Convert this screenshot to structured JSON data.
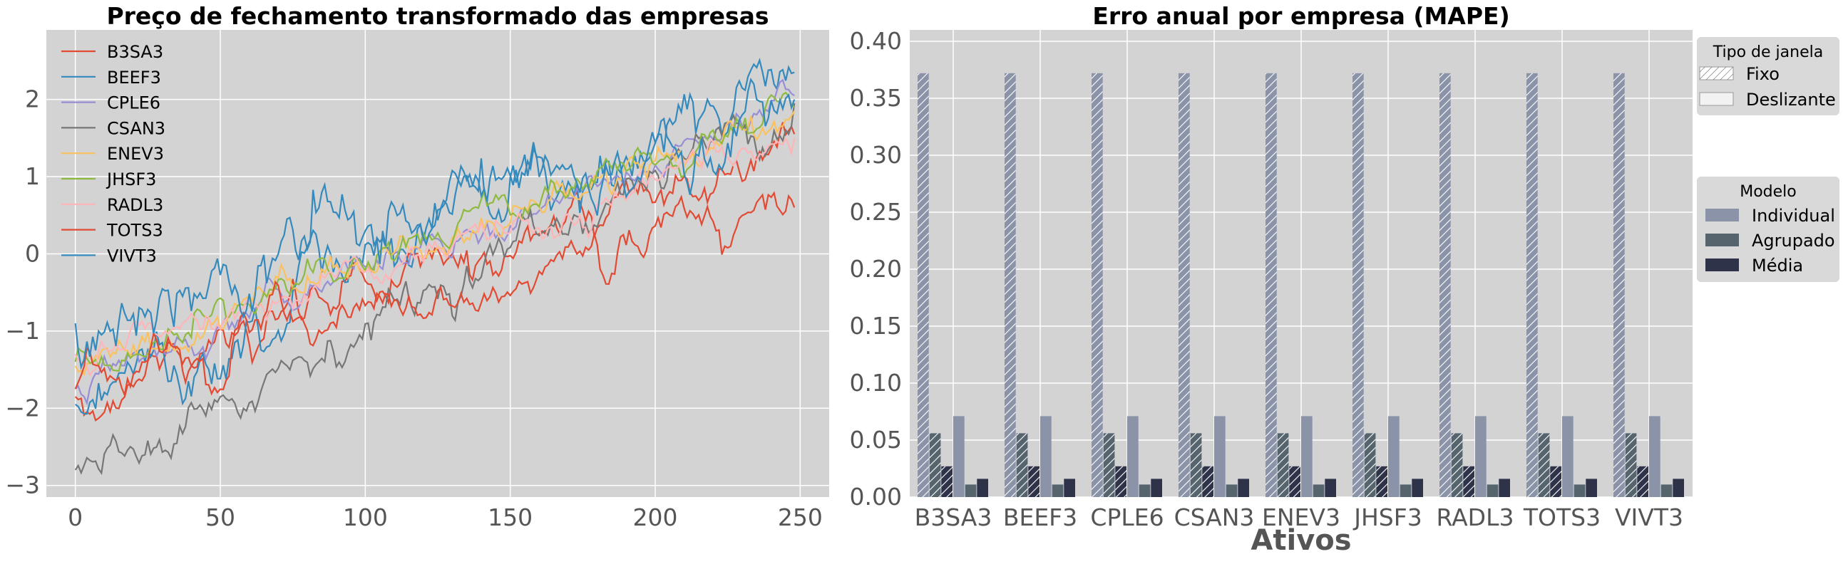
{
  "chart_data": [
    {
      "type": "line",
      "title": "Preço de fechamento transformado das empresas",
      "xlim": [
        -10,
        260
      ],
      "ylim": [
        -3.15,
        2.9
      ],
      "xticks": [
        "0",
        "50",
        "100",
        "150",
        "200",
        "250"
      ],
      "yticks": [
        "−3",
        "−2",
        "−1",
        "0",
        "1",
        "2"
      ],
      "grid": true,
      "legend_position": "top-left",
      "n_points": 249,
      "series": [
        {
          "name": "B3SA3",
          "color": "#e24a33",
          "start": -1.85,
          "end": 1.55,
          "volatility": 0.1
        },
        {
          "name": "BEEF3",
          "color": "#348abd",
          "start": -1.95,
          "end": 2.35,
          "volatility": 0.16
        },
        {
          "name": "CPLE6",
          "color": "#988ed5",
          "start": -1.75,
          "end": 2.05,
          "volatility": 0.07
        },
        {
          "name": "CSAN3",
          "color": "#777777",
          "start": -2.8,
          "end": 1.95,
          "volatility": 0.1
        },
        {
          "name": "ENEV3",
          "color": "#fbc15e",
          "start": -1.45,
          "end": 1.85,
          "volatility": 0.08
        },
        {
          "name": "JHSF3",
          "color": "#8eba42",
          "start": -1.4,
          "end": 1.9,
          "volatility": 0.08
        },
        {
          "name": "RADL3",
          "color": "#ffb5b8",
          "start": -1.3,
          "end": 1.5,
          "volatility": 0.07
        },
        {
          "name": "TOTS3",
          "color": "#e24a33",
          "start": -1.75,
          "end": 0.6,
          "volatility": 0.1
        },
        {
          "name": "VIVT3",
          "color": "#348abd",
          "start": -0.9,
          "end": 2.0,
          "volatility": 0.18
        }
      ]
    },
    {
      "type": "bar",
      "title": "Erro anual por empresa (MAPE)",
      "xlabel": "Ativos",
      "ylim": [
        0,
        0.41
      ],
      "yticks": [
        "0.00",
        "0.05",
        "0.10",
        "0.15",
        "0.20",
        "0.25",
        "0.30",
        "0.35",
        "0.40"
      ],
      "grid": true,
      "categories": [
        "B3SA3",
        "BEEF3",
        "CPLE6",
        "CSAN3",
        "ENEV3",
        "JHSF3",
        "RADL3",
        "TOTS3",
        "VIVT3"
      ],
      "series": [
        {
          "name": "Individual",
          "janela": "Fixo",
          "color": "#8a93a8",
          "values": [
            0.372,
            0.372,
            0.372,
            0.372,
            0.372,
            0.372,
            0.372,
            0.372,
            0.372
          ]
        },
        {
          "name": "Agrupado",
          "janela": "Fixo",
          "color": "#56646e",
          "values": [
            0.056,
            0.056,
            0.056,
            0.056,
            0.056,
            0.056,
            0.056,
            0.056,
            0.056
          ]
        },
        {
          "name": "Média",
          "janela": "Fixo",
          "color": "#2f3349",
          "values": [
            0.027,
            0.027,
            0.027,
            0.027,
            0.027,
            0.027,
            0.027,
            0.027,
            0.027
          ]
        },
        {
          "name": "Individual",
          "janela": "Deslizante",
          "color": "#8a93a8",
          "values": [
            0.071,
            0.071,
            0.071,
            0.071,
            0.071,
            0.071,
            0.071,
            0.071,
            0.071
          ]
        },
        {
          "name": "Agrupado",
          "janela": "Deslizante",
          "color": "#56646e",
          "values": [
            0.011,
            0.011,
            0.011,
            0.011,
            0.011,
            0.011,
            0.011,
            0.011,
            0.011
          ]
        },
        {
          "name": "Média",
          "janela": "Deslizante",
          "color": "#2f3349",
          "values": [
            0.016,
            0.016,
            0.016,
            0.016,
            0.016,
            0.016,
            0.016,
            0.016,
            0.016
          ]
        }
      ],
      "legend_janela": {
        "title": "Tipo de janela",
        "items": [
          "Fixo",
          "Deslizante"
        ],
        "position": "upper-right-outside"
      },
      "legend_modelo": {
        "title": "Modelo",
        "items": [
          "Individual",
          "Agrupado",
          "Média"
        ],
        "colors": [
          "#8a93a8",
          "#56646e",
          "#2f3349"
        ],
        "position": "right-outside"
      }
    }
  ]
}
